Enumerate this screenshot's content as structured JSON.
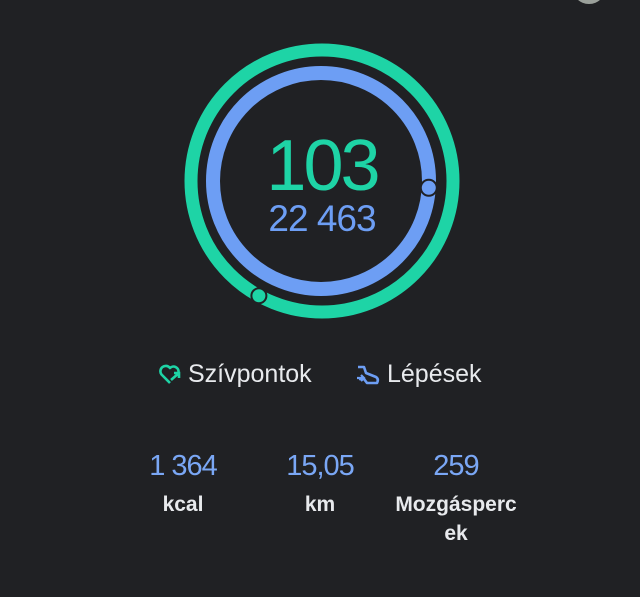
{
  "ring": {
    "heart_points_value": "103",
    "steps_value": "22 463",
    "heart_ring_progress": 1.58,
    "steps_ring_progress": 1.26,
    "heart_color": "#1ed4a6",
    "steps_color": "#6d9ef4"
  },
  "legend": {
    "heart_points_label": "Szívpontok",
    "heart_points_icon": "heart-arrow-icon",
    "steps_label": "Lépések",
    "steps_icon": "shoe-icon"
  },
  "stats": [
    {
      "value": "1 364",
      "label": "kcal"
    },
    {
      "value": "15,05",
      "label": "km"
    },
    {
      "value": "259",
      "label": "Mozgásperc ek"
    }
  ]
}
